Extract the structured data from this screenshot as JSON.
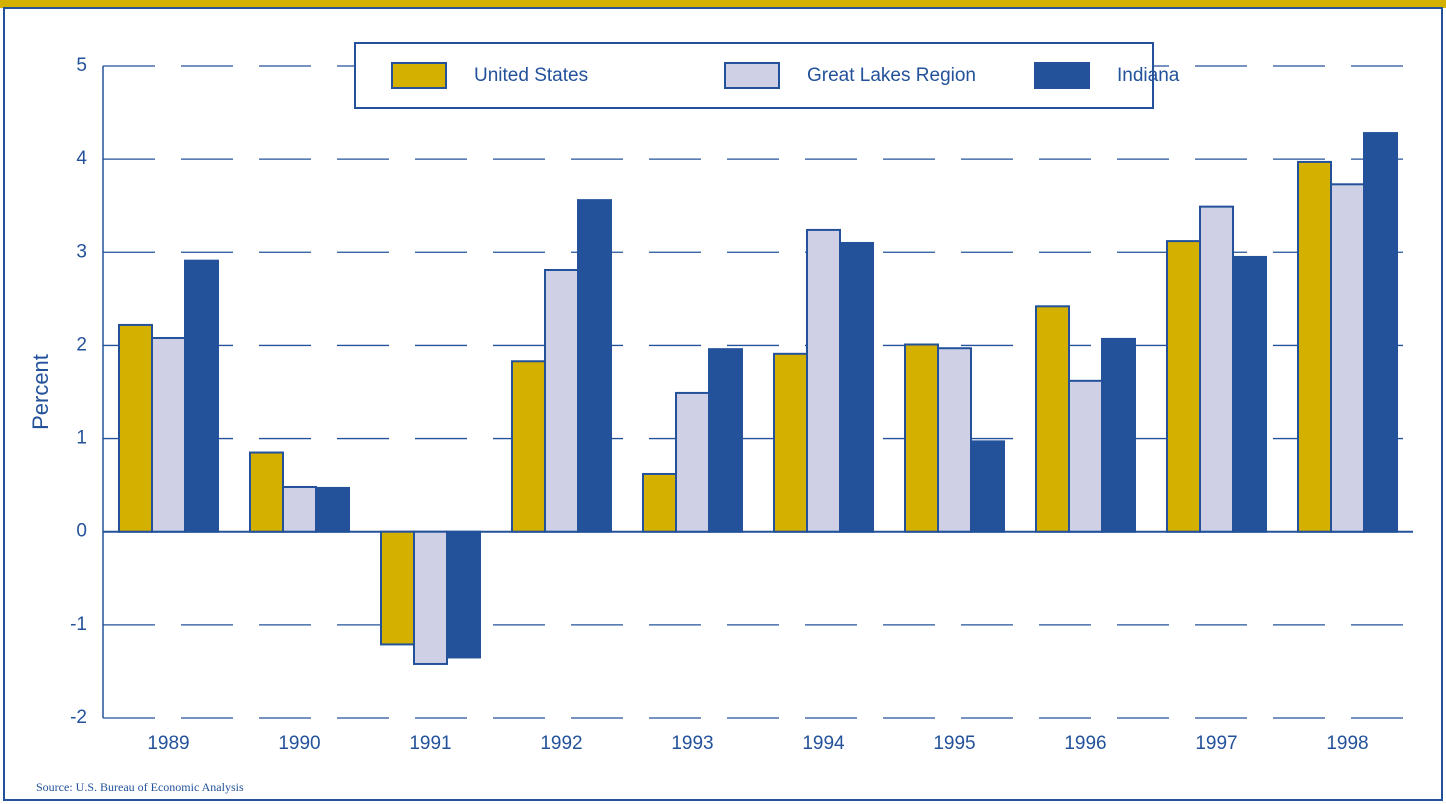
{
  "chart_data": {
    "type": "bar",
    "y_label": "Percent",
    "source": "Source: U.S. Bureau of Economic Analysis",
    "categories": [
      "1989",
      "1990",
      "1991",
      "1992",
      "1993",
      "1994",
      "1995",
      "1996",
      "1997",
      "1998"
    ],
    "series": [
      {
        "name": "United States",
        "color": "#d4b000",
        "values": [
          2.22,
          0.85,
          -1.21,
          1.83,
          0.62,
          1.91,
          2.01,
          2.42,
          3.12,
          3.97
        ]
      },
      {
        "name": "Great Lakes Region",
        "color": "#cfd0e6",
        "values": [
          2.08,
          0.48,
          -1.42,
          2.81,
          1.49,
          3.24,
          1.97,
          1.62,
          3.49,
          3.73
        ]
      },
      {
        "name": "Indiana",
        "color": "#23529a",
        "values": [
          2.91,
          0.47,
          -1.35,
          3.56,
          1.96,
          3.1,
          0.97,
          2.07,
          2.95,
          4.28
        ]
      }
    ],
    "ylim": [
      -2,
      5
    ],
    "yticks": [
      -2,
      -1,
      0,
      1,
      2,
      3,
      4,
      5
    ],
    "grid": true,
    "legend": "top"
  }
}
